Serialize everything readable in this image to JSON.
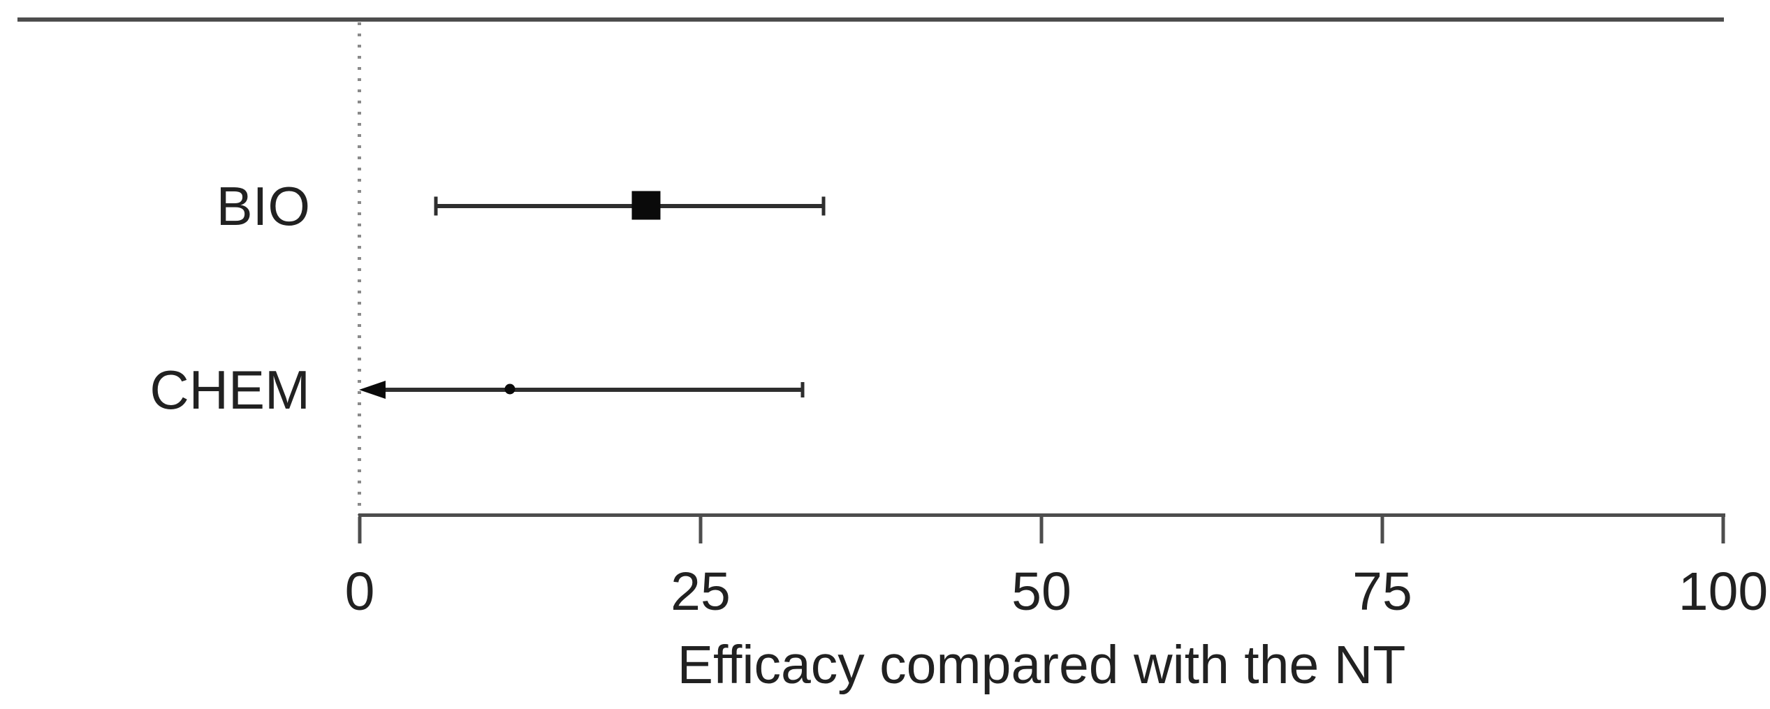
{
  "chart_data": {
    "type": "forest",
    "xlabel": "Efficacy compared with the NT",
    "xlim": [
      0,
      100
    ],
    "x_ticks": [
      0,
      25,
      50,
      75,
      100
    ],
    "reference_line_x": 0,
    "grid": false,
    "legend": false,
    "rows": [
      {
        "label": "BIO",
        "estimate": 21,
        "ci_low": 5.6,
        "ci_high": 34,
        "marker": "square",
        "marker_weight": "large",
        "arrow_low": false
      },
      {
        "label": "CHEM",
        "estimate": 11,
        "ci_low": 0,
        "ci_high": 32.5,
        "marker": "circle",
        "marker_weight": "small",
        "arrow_low": true
      }
    ],
    "colors": {
      "axis": "#4d4d4d",
      "line": "#2e2e2e",
      "marker": "#0a0a0a",
      "text": "#212121",
      "ref_line": "#8a8a8a"
    }
  }
}
